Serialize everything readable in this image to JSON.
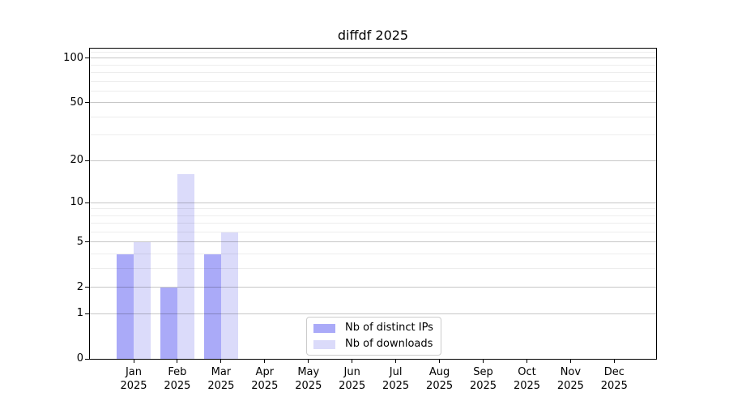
{
  "chart_data": {
    "type": "bar",
    "title": "diffdf 2025",
    "year_label": "2025",
    "categories": [
      "Jan",
      "Feb",
      "Mar",
      "Apr",
      "May",
      "Jun",
      "Jul",
      "Aug",
      "Sep",
      "Oct",
      "Nov",
      "Dec"
    ],
    "series": [
      {
        "name": "Nb of distinct IPs",
        "color": "#aaaaf8",
        "values": [
          4,
          2,
          4,
          0,
          0,
          0,
          0,
          0,
          0,
          0,
          0,
          0
        ]
      },
      {
        "name": "Nb of downloads",
        "color": "#dbdbfa",
        "values": [
          5,
          16,
          6,
          0,
          0,
          0,
          0,
          0,
          0,
          0,
          0,
          0
        ]
      }
    ],
    "yscale": "log1p",
    "ylim": [
      0,
      115
    ],
    "ytick_labels": [
      100,
      50,
      20,
      10,
      5,
      2,
      1,
      0
    ],
    "minor_gridlines": [
      110,
      90,
      80,
      70,
      60,
      40,
      30,
      9,
      8,
      7,
      6,
      4,
      3
    ],
    "grid": "both",
    "legend_position": "lower center"
  },
  "colors": {
    "major_grid": "rgba(0,0,0,0.22)",
    "minor_grid": "rgba(0,0,0,0.07)",
    "spine": "#000000",
    "legend_border": "#cccccc",
    "background": "#ffffff"
  }
}
